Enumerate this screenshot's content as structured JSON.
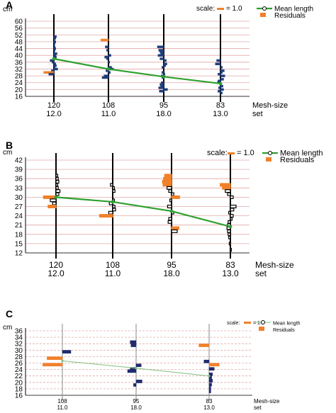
{
  "chart_data": [
    {
      "type": "line",
      "panel_label": "A",
      "y_unit": "cm",
      "yticks": [
        16,
        20,
        24,
        28,
        32,
        36,
        40,
        44,
        48,
        52,
        56,
        60
      ],
      "ylim": [
        16,
        60
      ],
      "scale_text": "scale:",
      "scale_value": "= 1.0",
      "legend": {
        "mean": "Mean length",
        "residuals": "Residuals"
      },
      "xlabel_line1": "Mesh-size",
      "xlabel_line2": "set",
      "groups": [
        {
          "mesh": "120",
          "set": "12.0",
          "mean": 38.0
        },
        {
          "mesh": "108",
          "set": "11.0",
          "mean": 32.0
        },
        {
          "mesh": "95",
          "set": "18.0",
          "mean": 27.5
        },
        {
          "mesh": "83",
          "set": "13.0",
          "mean": 23.5
        }
      ],
      "residual_color": "#1f3f7a",
      "line_color": "#2ea02e",
      "residuals": [
        [
          [
            51,
            0.4
          ],
          [
            50,
            0.3
          ],
          [
            48,
            0.3
          ],
          [
            47,
            0.2
          ],
          [
            45,
            0.2
          ],
          [
            44,
            0.3
          ],
          [
            43,
            0.2
          ],
          [
            41,
            0.5
          ],
          [
            40,
            0.3
          ],
          [
            39,
            0.4
          ],
          [
            37,
            -0.6
          ],
          [
            36,
            -0.3
          ],
          [
            35,
            0.3
          ],
          [
            34,
            0.4
          ],
          [
            33,
            0.2
          ],
          [
            32,
            0.6
          ],
          [
            31,
            -0.4
          ],
          [
            30,
            -1.6
          ],
          [
            29,
            -0.8
          ]
        ],
        [
          [
            49,
            -1.2
          ],
          [
            45,
            -0.5
          ],
          [
            43,
            -0.3
          ],
          [
            40,
            0.4
          ],
          [
            39,
            -0.6
          ],
          [
            38,
            -0.3
          ],
          [
            36,
            0.2
          ],
          [
            33,
            0.5
          ],
          [
            32,
            0.8
          ],
          [
            31,
            -0.4
          ],
          [
            30,
            0.3
          ],
          [
            28,
            -0.7
          ],
          [
            27,
            -1.0
          ]
        ],
        [
          [
            45,
            -1.0
          ],
          [
            43,
            -0.8
          ],
          [
            42,
            -0.6
          ],
          [
            41,
            -0.5
          ],
          [
            40,
            -0.9
          ],
          [
            38,
            -0.6
          ],
          [
            37,
            0.4
          ],
          [
            35,
            0.5
          ],
          [
            34,
            0.3
          ],
          [
            33,
            -0.3
          ],
          [
            30,
            -0.3
          ],
          [
            29,
            0.2
          ],
          [
            28,
            -0.4
          ],
          [
            27,
            -0.3
          ],
          [
            24,
            -0.4
          ],
          [
            23,
            -0.6
          ],
          [
            22,
            -0.5
          ],
          [
            21,
            -0.8
          ],
          [
            20,
            0.6
          ],
          [
            19,
            -0.7
          ]
        ],
        [
          [
            37,
            -0.6
          ],
          [
            35,
            -0.8
          ],
          [
            33,
            0.3
          ],
          [
            31,
            0.6
          ],
          [
            30,
            0.3
          ],
          [
            29,
            -0.4
          ],
          [
            28,
            0.7
          ],
          [
            26,
            0.5
          ],
          [
            25,
            -0.4
          ],
          [
            24,
            -0.5
          ],
          [
            22,
            0.4
          ],
          [
            21,
            -0.3
          ],
          [
            20,
            0.5
          ],
          [
            19,
            -0.4
          ],
          [
            18,
            0.3
          ]
        ]
      ]
    },
    {
      "type": "line",
      "panel_label": "B",
      "y_unit": "cm",
      "yticks": [
        12,
        15,
        18,
        21,
        24,
        27,
        30,
        33,
        36,
        39,
        42
      ],
      "ylim": [
        12,
        42
      ],
      "scale_text": "scale:",
      "scale_value": "= 1.0",
      "legend": {
        "mean": "Mean length",
        "residuals": "Residuals"
      },
      "xlabel_line1": "Mesh-size",
      "xlabel_line2": "set",
      "groups": [
        {
          "mesh": "120",
          "set": "12.0",
          "mean": 30.0
        },
        {
          "mesh": "108",
          "set": "11.0",
          "mean": 28.5
        },
        {
          "mesh": "95",
          "set": "18.0",
          "mean": 25.5
        },
        {
          "mesh": "83",
          "set": "13.0",
          "mean": 20.5
        }
      ],
      "residual_color": "#ffffff",
      "line_color": "#2ea02e",
      "residuals": [
        [
          [
            37,
            0.3
          ],
          [
            36,
            0.4
          ],
          [
            35,
            0.5
          ],
          [
            34,
            0.3
          ],
          [
            33,
            0.4
          ],
          [
            32,
            0.7
          ],
          [
            31,
            0.5
          ],
          [
            30,
            -2.2
          ],
          [
            29,
            -1.0
          ],
          [
            28,
            -0.6
          ],
          [
            27,
            -1.4
          ]
        ],
        [
          [
            34,
            -0.4
          ],
          [
            33,
            0.3
          ],
          [
            32,
            0.4
          ],
          [
            29,
            0.3
          ],
          [
            28,
            -0.6
          ],
          [
            27,
            0.4
          ],
          [
            26,
            0.5
          ],
          [
            25,
            -0.7
          ],
          [
            24,
            -2.3
          ]
        ],
        [
          [
            37,
            -1.2
          ],
          [
            36,
            -1.4
          ],
          [
            35,
            -1.6
          ],
          [
            34,
            -1.5
          ],
          [
            33,
            -0.8
          ],
          [
            32,
            -0.5
          ],
          [
            31,
            0.4
          ],
          [
            30,
            1.4
          ],
          [
            29,
            -0.3
          ],
          [
            27,
            -0.7
          ],
          [
            25,
            0.4
          ],
          [
            23,
            -0.5
          ],
          [
            22,
            -0.6
          ],
          [
            20,
            1.3
          ],
          [
            19,
            1.0
          ]
        ],
        [
          [
            34,
            -1.8
          ],
          [
            33,
            -1.4
          ],
          [
            32,
            -0.9
          ],
          [
            31,
            -0.5
          ],
          [
            30,
            0.5
          ],
          [
            27,
            1.0
          ],
          [
            26,
            0.6
          ],
          [
            25,
            -0.3
          ],
          [
            24,
            0.5
          ],
          [
            23,
            0.3
          ],
          [
            22,
            -0.4
          ],
          [
            21,
            -0.5
          ],
          [
            20,
            -0.6
          ],
          [
            19,
            -0.5
          ],
          [
            18,
            -0.4
          ],
          [
            17,
            -0.3
          ],
          [
            15,
            -0.2
          ],
          [
            13,
            0.1
          ]
        ]
      ]
    },
    {
      "type": "line",
      "panel_label": "C",
      "y_unit": "cm",
      "yticks": [
        16,
        18,
        20,
        22,
        24,
        26,
        28,
        30,
        32,
        34,
        36
      ],
      "ylim": [
        16,
        36
      ],
      "scale_text": "scale:",
      "scale_value": "= 1.0",
      "legend": {
        "mean": "Mean length",
        "residuals": "Residuals"
      },
      "xlabel_line1": "Mesh-size",
      "xlabel_line2": "set",
      "groups": [
        {
          "mesh": "108",
          "set": "11.0",
          "mean": 26.7
        },
        {
          "mesh": "95",
          "set": "18.0",
          "mean": 24.4
        },
        {
          "mesh": "83",
          "set": "13.0",
          "mean": 22.0
        }
      ],
      "residual_color": "#1f2a6e",
      "line_color": "#7fbf7f",
      "residuals": [
        [
          [
            29.5,
            1.0
          ],
          [
            27.5,
            -1.8
          ],
          [
            25.5,
            -2.3
          ]
        ],
        [
          [
            32.5,
            -0.7
          ],
          [
            31.5,
            -0.6
          ],
          [
            25.3,
            0.6
          ],
          [
            24.2,
            -0.7
          ],
          [
            23.5,
            -1.0
          ],
          [
            20.3,
            0.7
          ],
          [
            19.2,
            -0.3
          ]
        ],
        [
          [
            31.5,
            -1.2
          ],
          [
            26.5,
            -0.6
          ],
          [
            25.5,
            1.2
          ],
          [
            24.2,
            0.6
          ],
          [
            22.5,
            0.4
          ],
          [
            21.5,
            0.3
          ],
          [
            20.5,
            0.4
          ],
          [
            19.3,
            0.3
          ],
          [
            18.2,
            0.2
          ],
          [
            17.2,
            0.2
          ]
        ]
      ]
    }
  ]
}
